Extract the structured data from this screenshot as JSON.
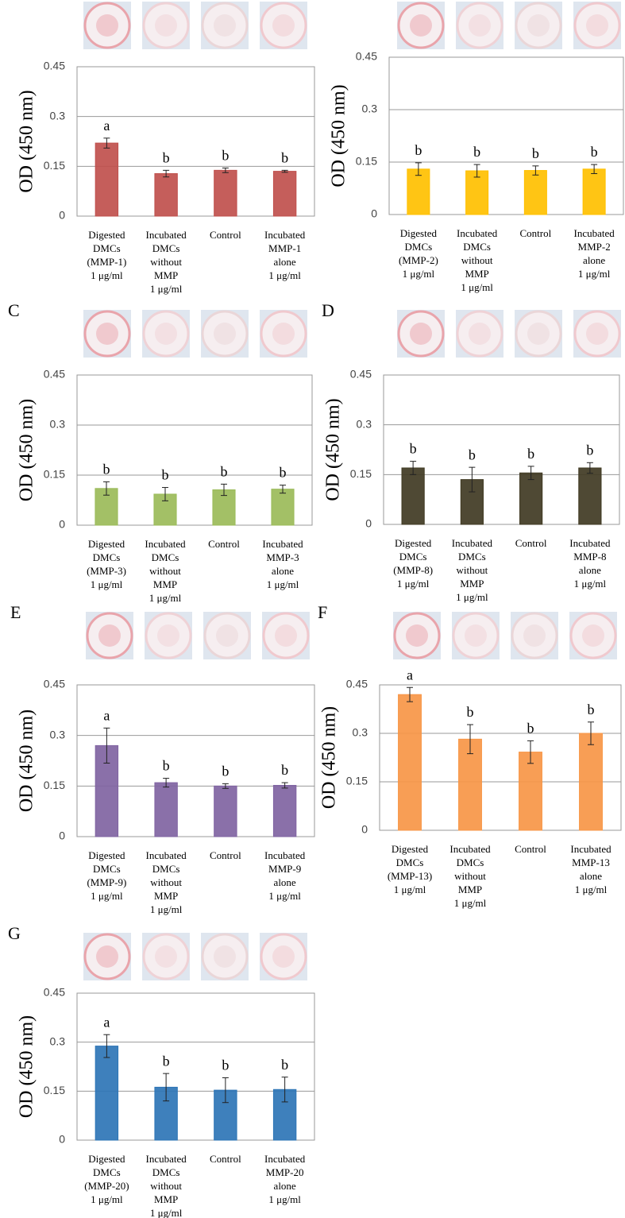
{
  "chart_data": [
    {
      "type": "bar",
      "ylabel": "OD (450 nm)",
      "color": "#c0504d",
      "categories": [
        "Digested\nDMCs\n(MMP-1)\n1 μg/ml",
        "Incubated\nDMCs\nwithout\nMMP\n1 μg/ml",
        "Control",
        "Incubated\nMMP-1\nalone\n1 μg/ml"
      ],
      "values": [
        0.22,
        0.128,
        0.138,
        0.135
      ],
      "errors": [
        0.015,
        0.01,
        0.007,
        0.003
      ],
      "letters": [
        "a",
        "b",
        "b",
        "b"
      ],
      "ylim": [
        0,
        0.45
      ],
      "yticks": [
        0,
        0.15,
        0.3,
        0.45
      ],
      "grid": true
    },
    {
      "type": "bar",
      "ylabel": "OD (450 nm)",
      "color": "#ffc000",
      "categories": [
        "Digested\nDMCs\n(MMP-2)\n1 μg/ml",
        "Incubated\nDMCs\nwithout\nMMP\n1 μg/ml",
        "Control",
        "Incubated\nMMP-2\nalone\n1 μg/ml"
      ],
      "values": [
        0.13,
        0.125,
        0.126,
        0.13
      ],
      "errors": [
        0.018,
        0.018,
        0.013,
        0.013
      ],
      "letters": [
        "b",
        "b",
        "b",
        "b"
      ],
      "ylim": [
        0,
        0.45
      ],
      "yticks": [
        0,
        0.15,
        0.3,
        0.45
      ],
      "grid": true
    },
    {
      "type": "bar",
      "panel_label": "C",
      "ylabel": "OD (450 nm)",
      "color": "#9bbb59",
      "categories": [
        "Digested\nDMCs\n(MMP-3)\n1 μg/ml",
        "Incubated\nDMCs\nwithout\nMMP\n1 μg/ml",
        "Control",
        "Incubated\nMMP-3\nalone\n1 μg/ml"
      ],
      "values": [
        0.11,
        0.093,
        0.106,
        0.108
      ],
      "errors": [
        0.02,
        0.02,
        0.017,
        0.012
      ],
      "letters": [
        "b",
        "b",
        "b",
        "b"
      ],
      "ylim": [
        0,
        0.45
      ],
      "yticks": [
        0,
        0.15,
        0.3,
        0.45
      ],
      "grid": true
    },
    {
      "type": "bar",
      "panel_label": "D",
      "ylabel": "OD (450 nm)",
      "color": "#403a23",
      "categories": [
        "Digested\nDMCs\n(MMP-8)\n1 μg/ml",
        "Incubated\nDMCs\nwithout\nMMP\n1 μg/ml",
        "Control",
        "Incubated\nMMP-8\nalone\n1 μg/ml"
      ],
      "values": [
        0.17,
        0.135,
        0.155,
        0.17
      ],
      "errors": [
        0.02,
        0.037,
        0.02,
        0.016
      ],
      "letters": [
        "b",
        "b",
        "b",
        "b"
      ],
      "ylim": [
        0,
        0.45
      ],
      "yticks": [
        0,
        0.15,
        0.3,
        0.45
      ],
      "grid": true
    },
    {
      "type": "bar",
      "panel_label": "E",
      "ylabel": "OD (450 nm)",
      "color": "#8064a2",
      "categories": [
        "Digested\nDMCs\n(MMP-9)\n1 μg/ml",
        "Incubated\nDMCs\nwithout\nMMP\n1 μg/ml",
        "Control",
        "Incubated\nMMP-9\nalone\n1 μg/ml"
      ],
      "values": [
        0.27,
        0.16,
        0.15,
        0.152
      ],
      "errors": [
        0.052,
        0.013,
        0.007,
        0.008
      ],
      "letters": [
        "a",
        "b",
        "b",
        "b"
      ],
      "ylim": [
        0,
        0.45
      ],
      "yticks": [
        0,
        0.15,
        0.3,
        0.45
      ],
      "grid": true
    },
    {
      "type": "bar",
      "panel_label": "F",
      "ylabel": "OD (450 nm)",
      "color": "#f79646",
      "categories": [
        "Digested\nDMCs\n(MMP-13)\n1 μg/ml",
        "Incubated\nDMCs\nwithout\nMMP\n1 μg/ml",
        "Control",
        "Incubated\nMMP-13\nalone\n1 μg/ml"
      ],
      "values": [
        0.42,
        0.282,
        0.242,
        0.3
      ],
      "errors": [
        0.022,
        0.045,
        0.035,
        0.035
      ],
      "letters": [
        "a",
        "b",
        "b",
        "b"
      ],
      "ylim": [
        0,
        0.45
      ],
      "yticks": [
        0,
        0.15,
        0.3,
        0.45
      ],
      "grid": true
    },
    {
      "type": "bar",
      "panel_label": "G",
      "ylabel": "OD (450 nm)",
      "color": "#2e75b6",
      "categories": [
        "Digested\nDMCs\n(MMP-20)\n1 μg/ml",
        "Incubated\nDMCs\nwithout\nMMP\n1 μg/ml",
        "Control",
        "Incubated\nMMP-20\nalone\n1 μg/ml"
      ],
      "values": [
        0.288,
        0.162,
        0.153,
        0.155
      ],
      "errors": [
        0.035,
        0.042,
        0.038,
        0.038
      ],
      "letters": [
        "a",
        "b",
        "b",
        "b"
      ],
      "ylim": [
        0,
        0.45
      ],
      "yticks": [
        0,
        0.15,
        0.3,
        0.45
      ],
      "grid": true
    }
  ]
}
